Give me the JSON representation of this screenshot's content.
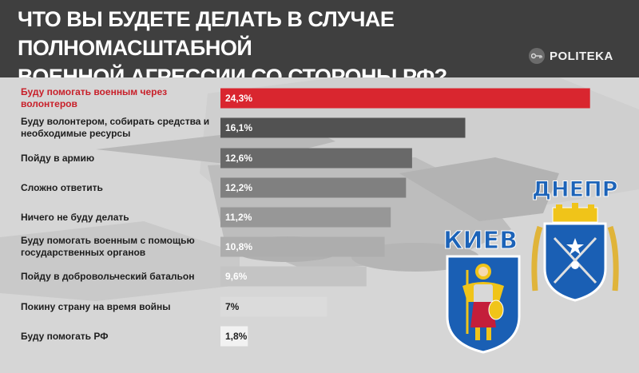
{
  "header": {
    "title_line1": "ЧТО ВЫ БУДЕТЕ ДЕЛАТЬ В СЛУЧАЕ ПОЛНОМАСШТАБНОЙ",
    "title_line2": "ВОЕННОЙ АГРЕССИИ СО СТОРОНЫ РФ?",
    "brand": "POLITEKA"
  },
  "crests": {
    "kiev_label": "КИЕВ",
    "dnepr_label": "ДНЕПР"
  },
  "colors": {
    "highlight": "#d9262f",
    "bar_dark": "#555555",
    "bar_light": "#f2f2f2",
    "header_bg": "#3f3f3f"
  },
  "chart_data": {
    "type": "bar",
    "orientation": "horizontal",
    "categories": [
      "Буду помогать военным через волонтеров",
      "Буду волонтером, собирать средства и необходимые ресурсы",
      "Пойду в армию",
      "Сложно ответить",
      "Ничего не буду делать",
      "Буду помогать военным с помощью государственных органов",
      "Пойду в добровольческий батальон",
      "Покину страну на время войны",
      "Буду помогать РФ"
    ],
    "values": [
      24.3,
      16.1,
      12.6,
      12.2,
      11.2,
      10.8,
      9.6,
      7,
      1.8
    ],
    "value_labels": [
      "24,3%",
      "16,1%",
      "12,6%",
      "12,2%",
      "11,2%",
      "10,8%",
      "9,6%",
      "7%",
      "1,8%"
    ],
    "highlighted_index": 0,
    "xlim": [
      0,
      25
    ]
  }
}
